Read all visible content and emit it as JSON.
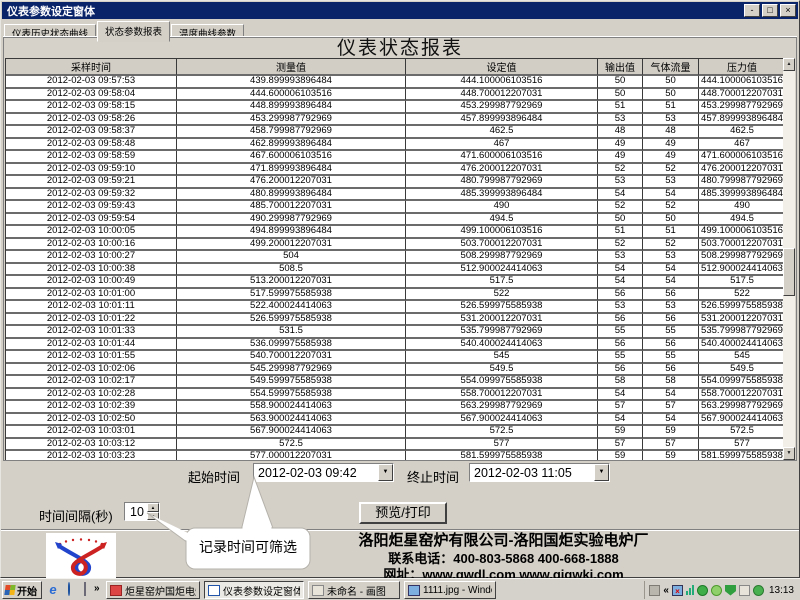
{
  "colors": {
    "titlebar": "#0a246a",
    "chrome": "#d4d0c8",
    "grid_line": "#6b6b6b",
    "cell_bg": "#ffffff"
  },
  "window": {
    "title": "仪表参数设定窗体",
    "minimize_glyph": "-",
    "restore_glyph": "□",
    "close_glyph": "×"
  },
  "tabs": [
    {
      "label": "仪表历史状态曲线",
      "active": false
    },
    {
      "label": "状态参数报表",
      "active": true
    },
    {
      "label": "温度曲线参数",
      "active": false
    }
  ],
  "report": {
    "title": "仪表状态报表",
    "columns": [
      "采样时间",
      "测量值",
      "设定值",
      "输出值",
      "气体流量",
      "压力值"
    ],
    "rows": [
      [
        "2012-02-03 09:57:53",
        "439.899993896484",
        "444.100006103516",
        "50",
        "50",
        "444.100006103516"
      ],
      [
        "2012-02-03 09:58:04",
        "444.600006103516",
        "448.700012207031",
        "50",
        "50",
        "448.700012207031"
      ],
      [
        "2012-02-03 09:58:15",
        "448.899993896484",
        "453.299987792969",
        "51",
        "51",
        "453.299987792969"
      ],
      [
        "2012-02-03 09:58:26",
        "453.299987792969",
        "457.899993896484",
        "53",
        "53",
        "457.899993896484"
      ],
      [
        "2012-02-03 09:58:37",
        "458.799987792969",
        "462.5",
        "48",
        "48",
        "462.5"
      ],
      [
        "2012-02-03 09:58:48",
        "462.899993896484",
        "467",
        "49",
        "49",
        "467"
      ],
      [
        "2012-02-03 09:58:59",
        "467.600006103516",
        "471.600006103516",
        "49",
        "49",
        "471.600006103516"
      ],
      [
        "2012-02-03 09:59:10",
        "471.899993896484",
        "476.200012207031",
        "52",
        "52",
        "476.200012207031"
      ],
      [
        "2012-02-03 09:59:21",
        "476.200012207031",
        "480.799987792969",
        "53",
        "53",
        "480.799987792969"
      ],
      [
        "2012-02-03 09:59:32",
        "480.899993896484",
        "485.399993896484",
        "54",
        "54",
        "485.399993896484"
      ],
      [
        "2012-02-03 09:59:43",
        "485.700012207031",
        "490",
        "52",
        "52",
        "490"
      ],
      [
        "2012-02-03 09:59:54",
        "490.299987792969",
        "494.5",
        "50",
        "50",
        "494.5"
      ],
      [
        "2012-02-03 10:00:05",
        "494.899993896484",
        "499.100006103516",
        "51",
        "51",
        "499.100006103516"
      ],
      [
        "2012-02-03 10:00:16",
        "499.200012207031",
        "503.700012207031",
        "52",
        "52",
        "503.700012207031"
      ],
      [
        "2012-02-03 10:00:27",
        "504",
        "508.299987792969",
        "53",
        "53",
        "508.299987792969"
      ],
      [
        "2012-02-03 10:00:38",
        "508.5",
        "512.900024414063",
        "54",
        "54",
        "512.900024414063"
      ],
      [
        "2012-02-03 10:00:49",
        "513.200012207031",
        "517.5",
        "54",
        "54",
        "517.5"
      ],
      [
        "2012-02-03 10:01:00",
        "517.599975585938",
        "522",
        "56",
        "56",
        "522"
      ],
      [
        "2012-02-03 10:01:11",
        "522.400024414063",
        "526.599975585938",
        "53",
        "53",
        "526.599975585938"
      ],
      [
        "2012-02-03 10:01:22",
        "526.599975585938",
        "531.200012207031",
        "56",
        "56",
        "531.200012207031"
      ],
      [
        "2012-02-03 10:01:33",
        "531.5",
        "535.799987792969",
        "55",
        "55",
        "535.799987792969"
      ],
      [
        "2012-02-03 10:01:44",
        "536.099975585938",
        "540.400024414063",
        "56",
        "56",
        "540.400024414063"
      ],
      [
        "2012-02-03 10:01:55",
        "540.700012207031",
        "545",
        "55",
        "55",
        "545"
      ],
      [
        "2012-02-03 10:02:06",
        "545.299987792969",
        "549.5",
        "56",
        "56",
        "549.5"
      ],
      [
        "2012-02-03 10:02:17",
        "549.599975585938",
        "554.099975585938",
        "58",
        "58",
        "554.099975585938"
      ],
      [
        "2012-02-03 10:02:28",
        "554.599975585938",
        "558.700012207031",
        "54",
        "54",
        "558.700012207031"
      ],
      [
        "2012-02-03 10:02:39",
        "558.900024414063",
        "563.299987792969",
        "57",
        "57",
        "563.299987792969"
      ],
      [
        "2012-02-03 10:02:50",
        "563.900024414063",
        "567.900024414063",
        "54",
        "54",
        "567.900024414063"
      ],
      [
        "2012-02-03 10:03:01",
        "567.900024414063",
        "572.5",
        "59",
        "59",
        "572.5"
      ],
      [
        "2012-02-03 10:03:12",
        "572.5",
        "577",
        "57",
        "57",
        "577"
      ],
      [
        "2012-02-03 10:03:23",
        "577.000012207031",
        "581.599975585938",
        "59",
        "59",
        "581.599975585938"
      ]
    ]
  },
  "filter": {
    "start_label": "起始时间",
    "start_value": "2012-02-03 09:42",
    "end_label": "终止时间",
    "end_value": "2012-02-03 11:05",
    "interval_label": "时间间隔(秒)",
    "interval_value": "10",
    "preview_button": "预览/打印",
    "callout": "记录时间可筛选"
  },
  "footer": {
    "company": "洛阳炬星窑炉有限公司-洛阳国炬实验电炉厂",
    "phone": "联系电话：400-803-5868 400-668-1888",
    "website": "网址：www.gwdl.com  www.gigwki.com"
  },
  "icons": {
    "dropdown": "▼",
    "spin_up": "▲",
    "spin_down": "▼",
    "scroll_up": "▲",
    "scroll_down": "▼",
    "overflow": "»",
    "tray_collapse": "«",
    "net_offline": "×"
  },
  "taskbar": {
    "start": "开始",
    "tasks": [
      {
        "label": "炬星窑炉国炬电炉监...",
        "active": false
      },
      {
        "label": "仪表参数设定窗体",
        "active": true
      },
      {
        "label": "未命名 - 画图",
        "active": false
      },
      {
        "label": "1111.jpg - Windows ...",
        "active": false
      }
    ],
    "clock": "13:13"
  }
}
